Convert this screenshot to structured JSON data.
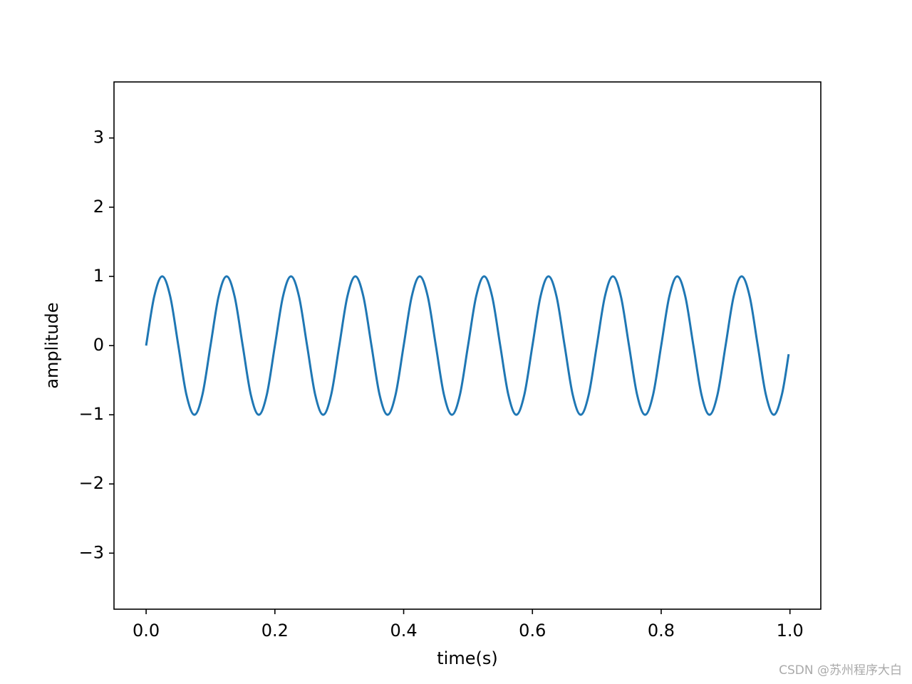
{
  "chart_data": {
    "type": "line",
    "xlabel": "time(s)",
    "ylabel": "amplitude",
    "x": [
      0,
      0.0125,
      0.025,
      0.0375,
      0.05,
      0.0625,
      0.075,
      0.0875,
      0.1,
      0.1125,
      0.125,
      0.1375,
      0.15,
      0.1625,
      0.175,
      0.1875,
      0.2,
      0.2125,
      0.225,
      0.2375,
      0.25,
      0.2625,
      0.275,
      0.2875,
      0.3,
      0.3125,
      0.325,
      0.3375,
      0.35,
      0.3625,
      0.375,
      0.3875,
      0.4,
      0.4125,
      0.425,
      0.4375,
      0.45,
      0.4625,
      0.475,
      0.4875,
      0.5,
      0.5125,
      0.525,
      0.5375,
      0.55,
      0.5625,
      0.575,
      0.5875,
      0.6,
      0.6125,
      0.625,
      0.6375,
      0.65,
      0.6625,
      0.675,
      0.6875,
      0.7,
      0.7125,
      0.725,
      0.7375,
      0.75,
      0.7625,
      0.775,
      0.7875,
      0.8,
      0.8125,
      0.825,
      0.8375,
      0.85,
      0.8625,
      0.875,
      0.8875,
      0.9,
      0.9125,
      0.925,
      0.9375,
      0.95,
      0.9625,
      0.975,
      0.9875,
      0.998
    ],
    "series": [
      {
        "color": "#1f77b4",
        "values": [
          0,
          0.7071,
          1,
          0.7071,
          0,
          -0.7071,
          -1,
          -0.7071,
          0,
          0.7071,
          1,
          0.7071,
          0,
          -0.7071,
          -1,
          -0.7071,
          0,
          0.7071,
          1,
          0.7071,
          0,
          -0.7071,
          -1,
          -0.7071,
          0,
          0.7071,
          1,
          0.7071,
          0,
          -0.7071,
          -1,
          -0.7071,
          0,
          0.7071,
          1,
          0.7071,
          0,
          -0.7071,
          -1,
          -0.7071,
          0,
          0.7071,
          1,
          0.7071,
          0,
          -0.7071,
          -1,
          -0.7071,
          0,
          0.7071,
          1,
          0.7071,
          0,
          -0.7071,
          -1,
          -0.7071,
          0,
          0.7071,
          1,
          0.7071,
          0,
          -0.7071,
          -1,
          -0.7071,
          0,
          0.7071,
          1,
          0.7071,
          0,
          -0.7071,
          -1,
          -0.7071,
          0,
          0.7071,
          1,
          0.7071,
          0,
          -0.7071,
          -1,
          -0.7071,
          -0.1253
        ]
      }
    ],
    "xlim": [
      -0.0499,
      1.0479
    ],
    "ylim": [
      -3.81,
      3.81
    ],
    "xticks": [
      {
        "value": 0,
        "label": "0.0"
      },
      0.2,
      0.4,
      0.6,
      0.8,
      {
        "value": 1,
        "label": "1.0"
      }
    ],
    "yticks": [
      {
        "value": -3,
        "label": "−3"
      },
      {
        "value": -2,
        "label": "−2"
      },
      {
        "value": -1,
        "label": "−1"
      },
      0,
      1,
      2,
      3
    ],
    "watermark": "CSDN @苏州程序大白"
  }
}
